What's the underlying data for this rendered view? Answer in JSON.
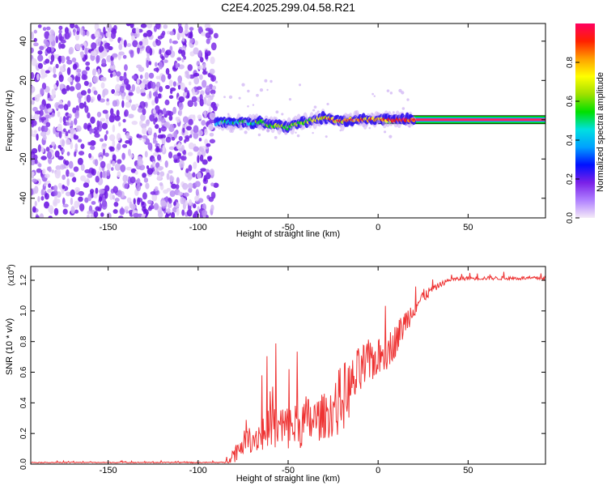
{
  "title": "C2E4.2025.299.04.58.R21",
  "chart_data": [
    {
      "type": "heatmap",
      "xlabel": "Height of straight line (km)",
      "ylabel": "Frequency (Hz)",
      "xlim": [
        -193,
        93
      ],
      "ylim": [
        -50,
        49
      ],
      "xticks": [
        -150,
        -100,
        -50,
        0,
        50
      ],
      "yticks": [
        -40,
        -20,
        0,
        20,
        40
      ],
      "noise_region_x": [
        -193,
        -90
      ],
      "signal_track": {
        "x": [
          -90,
          -85,
          -80,
          -75,
          -70,
          -65,
          -60,
          -55,
          -50,
          -45,
          -40,
          -35,
          -30,
          -25,
          -20,
          -15,
          -10,
          -5,
          0,
          5,
          10,
          15,
          20,
          40,
          60,
          93
        ],
        "freq": [
          -2,
          -1,
          -2,
          -1,
          -2,
          -1,
          -3,
          -3,
          -4,
          -2,
          -1,
          0,
          1,
          0,
          -1,
          0,
          0,
          0,
          0,
          0,
          0,
          0,
          0,
          0,
          0,
          0
        ]
      },
      "colorbar": {
        "label": "Normalized spectral amplitude",
        "ticks": [
          0.0,
          0.2,
          0.4,
          0.6,
          0.8
        ],
        "range": [
          0,
          1
        ],
        "colors": [
          "#f4eaf8",
          "#b080ff",
          "#7a20e8",
          "#0010ff",
          "#00a0ff",
          "#00e0e0",
          "#00e000",
          "#a0e000",
          "#ffff00",
          "#ffa000",
          "#ff2000",
          "#ff0060"
        ]
      }
    },
    {
      "type": "line",
      "xlabel": "Height of straight line (km)",
      "ylabel": "SNR (10 * v/v)",
      "multiplier": "(x10",
      "multiplier_exp": "4",
      "multiplier_close": ")",
      "xlim": [
        -193,
        93
      ],
      "ylim": [
        0,
        1.29
      ],
      "xticks": [
        -150,
        -100,
        -50,
        0,
        50
      ],
      "yticks": [
        0.0,
        0.2,
        0.4,
        0.6,
        0.8,
        1.0,
        1.2
      ],
      "line_color": "#ee3333",
      "series": [
        {
          "name": "SNR",
          "x": [
            -193,
            -150,
            -100,
            -85,
            -80,
            -75,
            -70,
            -65,
            -60,
            -55,
            -50,
            -45,
            -40,
            -35,
            -30,
            -25,
            -20,
            -15,
            -10,
            -5,
            0,
            5,
            10,
            15,
            20,
            25,
            30,
            35,
            40,
            50,
            60,
            70,
            80,
            93
          ],
          "baseline": [
            0.01,
            0.01,
            0.01,
            0.01,
            0.05,
            0.12,
            0.14,
            0.16,
            0.17,
            0.18,
            0.19,
            0.21,
            0.22,
            0.24,
            0.27,
            0.3,
            0.36,
            0.45,
            0.55,
            0.62,
            0.66,
            0.7,
            0.78,
            0.9,
            1.0,
            1.08,
            1.13,
            1.17,
            1.2,
            1.21,
            1.21,
            1.21,
            1.21,
            1.21
          ],
          "amplitude": [
            0.005,
            0.005,
            0.005,
            0.005,
            0.1,
            0.12,
            0.15,
            0.2,
            0.25,
            0.3,
            0.25,
            0.25,
            0.3,
            0.25,
            0.25,
            0.3,
            0.4,
            0.3,
            0.3,
            0.25,
            0.2,
            0.2,
            0.18,
            0.15,
            0.1,
            0.08,
            0.04,
            0.03,
            0.02,
            0.02,
            0.02,
            0.02,
            0.02,
            0.02
          ]
        }
      ]
    }
  ]
}
